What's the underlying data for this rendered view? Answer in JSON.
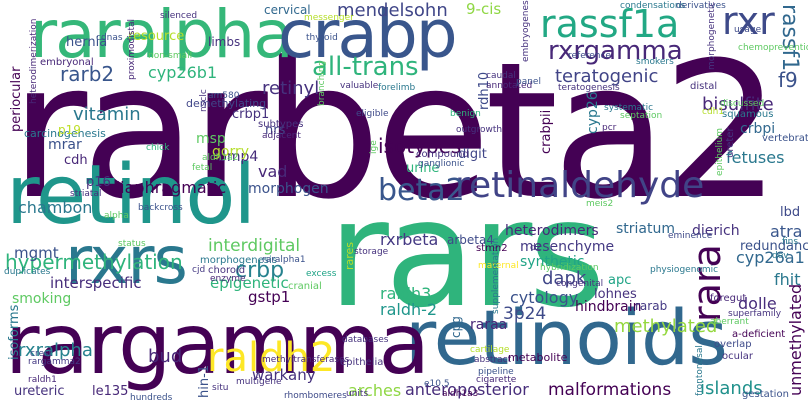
{
  "words": [
    {
      "text": "rarbeta2",
      "color": "#440154"
    },
    {
      "text": "rars",
      "color": "#2fb47c"
    },
    {
      "text": "retinoids",
      "color": "#31688e"
    },
    {
      "text": "rargamma",
      "color": "#440154"
    },
    {
      "text": "retinol",
      "color": "#1f968b"
    },
    {
      "text": "raralpha",
      "color": "#35b779"
    },
    {
      "text": "crabp",
      "color": "#39568c"
    },
    {
      "text": "rxrs",
      "color": "#2a788e"
    },
    {
      "text": "retinaldehyde",
      "color": "#414487"
    },
    {
      "text": "rassf1a",
      "color": "#22a884"
    },
    {
      "text": "rxrgamma",
      "color": "#482878"
    },
    {
      "text": "raldh2",
      "color": "#fde725"
    },
    {
      "text": "beta2",
      "color": "#39568c"
    },
    {
      "text": "rxr",
      "color": "#3e4a89"
    },
    {
      "text": "rassf1",
      "color": "#31688e"
    },
    {
      "text": "all-trans",
      "color": "#2fb47c"
    },
    {
      "text": "teratogenic",
      "color": "#414487"
    },
    {
      "text": "hypermethylation",
      "color": "#2fb47c"
    },
    {
      "text": "rara",
      "color": "#440154"
    },
    {
      "text": "rarb2",
      "color": "#39568c"
    },
    {
      "text": "cyp26b1",
      "color": "#2fb47c"
    },
    {
      "text": "mendelsohn",
      "color": "#404688"
    },
    {
      "text": "9-cis",
      "color": "#8fd744"
    },
    {
      "text": "retinyl",
      "color": "#46327e"
    },
    {
      "text": "vitamin",
      "color": "#2a788e"
    },
    {
      "text": "isotypes",
      "color": "#440154"
    },
    {
      "text": "bisulfite",
      "color": "#482878"
    },
    {
      "text": "f9",
      "color": "#3b528b"
    },
    {
      "text": "crbp",
      "color": "#26828e"
    },
    {
      "text": "interdigital",
      "color": "#5ec962"
    },
    {
      "text": "mesenchyme",
      "color": "#443983"
    },
    {
      "text": "cyp26a1",
      "color": "#31688e"
    },
    {
      "text": "mgmt",
      "color": "#3b528b"
    },
    {
      "text": "dapk",
      "color": "#404688"
    },
    {
      "text": "synthetic",
      "color": "#20a486"
    },
    {
      "text": "methylated",
      "color": "#95d840"
    },
    {
      "text": "rxrbeta",
      "color": "#443983"
    },
    {
      "text": "arbeta4",
      "color": "#3e4a89"
    },
    {
      "text": "heterodimers",
      "color": "#482878"
    },
    {
      "text": "striatum",
      "color": "#31688e"
    },
    {
      "text": "dierich",
      "color": "#46327e"
    },
    {
      "text": "atra",
      "color": "#39568c"
    },
    {
      "text": "cytology",
      "color": "#3b528b"
    },
    {
      "text": "raldh3",
      "color": "#2fb47c"
    },
    {
      "text": "raldh-2",
      "color": "#1f968b"
    },
    {
      "text": "chambon",
      "color": "#2a788e"
    },
    {
      "text": "p16",
      "color": "#46327e"
    },
    {
      "text": "diaphragmatic",
      "color": "#440154"
    },
    {
      "text": "vad",
      "color": "#482878"
    },
    {
      "text": "morphogen",
      "color": "#3b528b"
    },
    {
      "text": "gstp1",
      "color": "#440154"
    },
    {
      "text": "epigenetic",
      "color": "#2fb47c"
    },
    {
      "text": "interspecific",
      "color": "#472d7b"
    },
    {
      "text": "smoking",
      "color": "#5ec962"
    },
    {
      "text": "rxralpha",
      "color": "#26828e"
    },
    {
      "text": "bud",
      "color": "#482878"
    },
    {
      "text": "warkany",
      "color": "#46327e"
    },
    {
      "text": "arches",
      "color": "#8fd744"
    },
    {
      "text": "anteroposterior",
      "color": "#472d7b"
    },
    {
      "text": "malformations",
      "color": "#440154"
    },
    {
      "text": "islands",
      "color": "#21918c"
    },
    {
      "text": "unmethylated",
      "color": "#440154"
    },
    {
      "text": "3p24",
      "color": "#3e4a89"
    },
    {
      "text": "raraa",
      "color": "#482878"
    },
    {
      "text": "cpg",
      "color": "#31688e"
    },
    {
      "text": "hindbrain",
      "color": "#440154"
    },
    {
      "text": "rarab",
      "color": "#443983"
    },
    {
      "text": "apc",
      "color": "#20a486"
    },
    {
      "text": "lohnes",
      "color": "#46327e"
    },
    {
      "text": "dolle",
      "color": "#472d7b"
    },
    {
      "text": "fhit",
      "color": "#2a788e"
    },
    {
      "text": "redundancy",
      "color": "#3b528b"
    },
    {
      "text": "lbd",
      "color": "#3e4a89"
    },
    {
      "text": "fetuses",
      "color": "#2a788e"
    },
    {
      "text": "crbpi",
      "color": "#31688e"
    },
    {
      "text": "urine",
      "color": "#2fb47c"
    },
    {
      "text": "digit",
      "color": "#404688"
    },
    {
      "text": "bmp4",
      "color": "#472d7b"
    },
    {
      "text": "msp",
      "color": "#5ec962"
    },
    {
      "text": "crbp1",
      "color": "#46327e"
    },
    {
      "text": "mrar",
      "color": "#3b528b"
    },
    {
      "text": "cdh",
      "color": "#482878"
    },
    {
      "text": "carcinogenesis",
      "color": "#2a788e"
    },
    {
      "text": "hernia",
      "color": "#3b528b"
    },
    {
      "text": "resource",
      "color": "#b5de2b"
    },
    {
      "text": "limbs",
      "color": "#46327e"
    },
    {
      "text": "cervical",
      "color": "#31688e"
    },
    {
      "text": "embryonal",
      "color": "#482878"
    },
    {
      "text": "demethylating",
      "color": "#404688"
    },
    {
      "text": "periocular",
      "color": "#440154"
    },
    {
      "text": "nrs",
      "color": "#414487"
    },
    {
      "text": "gorry",
      "color": "#b5de2b"
    },
    {
      "text": "p19",
      "color": "#bddf26"
    },
    {
      "text": "ureteric",
      "color": "#46327e"
    },
    {
      "text": "le135",
      "color": "#482878"
    },
    {
      "text": "isoforms",
      "color": "#2a788e"
    },
    {
      "text": "crest",
      "color": "#3e4a89"
    },
    {
      "text": "rargamma2",
      "color": "#443983"
    },
    {
      "text": "raldh1",
      "color": "#482878"
    },
    {
      "text": "hin-1",
      "color": "#3b528b"
    },
    {
      "text": "epithelia",
      "color": "#46327e"
    },
    {
      "text": "methyltransferases",
      "color": "#482878"
    },
    {
      "text": "multigene",
      "color": "#46327e"
    },
    {
      "text": "rhombomeres",
      "color": "#3e4a89"
    },
    {
      "text": "morphogenesis",
      "color": "#2a788e"
    },
    {
      "text": "choroid",
      "color": "#46327e"
    },
    {
      "text": "enzyme",
      "color": "#482878"
    },
    {
      "text": "cjd",
      "color": "#443983"
    },
    {
      "text": "raralpha1",
      "color": "#3b528b"
    },
    {
      "text": "cranial",
      "color": "#5ec962"
    },
    {
      "text": "excess",
      "color": "#20a486"
    },
    {
      "text": "databases",
      "color": "#46327e"
    },
    {
      "text": "maternal",
      "color": "#fde725"
    },
    {
      "text": "supplementation",
      "color": "#2a788e"
    },
    {
      "text": "cartilage",
      "color": "#b5de2b"
    },
    {
      "text": "abstract",
      "color": "#46327e"
    },
    {
      "text": "metabolite",
      "color": "#440154"
    },
    {
      "text": "pipeline",
      "color": "#3b528b"
    },
    {
      "text": "cigarette",
      "color": "#482878"
    },
    {
      "text": "hybridization",
      "color": "#5ec962"
    },
    {
      "text": "congenital",
      "color": "#46327e"
    },
    {
      "text": "physiogenomic",
      "color": "#2a788e"
    },
    {
      "text": "aberrant",
      "color": "#5ec962"
    },
    {
      "text": "a-deficient",
      "color": "#440154"
    },
    {
      "text": "overlap",
      "color": "#3e4a89"
    },
    {
      "text": "ocular",
      "color": "#46327e"
    },
    {
      "text": "gestation",
      "color": "#3b528b"
    },
    {
      "text": "frontonasal",
      "color": "#2a788e"
    },
    {
      "text": "superfamily",
      "color": "#46327e"
    },
    {
      "text": "foregut",
      "color": "#482878"
    },
    {
      "text": "dev",
      "color": "#2a788e"
    },
    {
      "text": "eminence",
      "color": "#3e4a89"
    },
    {
      "text": "fins",
      "color": "#2a788e"
    },
    {
      "text": "storage",
      "color": "#46327e"
    },
    {
      "text": "rares",
      "color": "#b5de2b"
    },
    {
      "text": "stmn2",
      "color": "#440154"
    },
    {
      "text": "d2",
      "color": "#46327e"
    },
    {
      "text": "e10.5",
      "color": "#3b528b"
    },
    {
      "text": "units",
      "color": "#46327e"
    },
    {
      "text": "aldh1a3",
      "color": "#440154"
    },
    {
      "text": "hundreds",
      "color": "#3b528b"
    },
    {
      "text": "situ",
      "color": "#46327e"
    },
    {
      "text": "status",
      "color": "#5ec962"
    },
    {
      "text": "duplicates",
      "color": "#2a788e"
    },
    {
      "text": "backcross",
      "color": "#3b528b"
    },
    {
      "text": "alpha",
      "color": "#5ec962"
    },
    {
      "text": "striatal",
      "color": "#46327e"
    },
    {
      "text": "fetal",
      "color": "#5ec962"
    },
    {
      "text": "chick",
      "color": "#2fb47c"
    },
    {
      "text": "aldh1a2",
      "color": "#5ec962"
    },
    {
      "text": "subtypes",
      "color": "#46327e"
    },
    {
      "text": "adjacent",
      "color": "#482878"
    },
    {
      "text": "eligible",
      "color": "#3e4a89"
    },
    {
      "text": "ige",
      "color": "#5ec962"
    },
    {
      "text": "compound",
      "color": "#46327e"
    },
    {
      "text": "ganglionic",
      "color": "#3b528b"
    },
    {
      "text": "meis2",
      "color": "#5ec962"
    },
    {
      "text": "outgrowth",
      "color": "#46327e"
    },
    {
      "text": "benign",
      "color": "#2fb47c"
    },
    {
      "text": "systematic",
      "color": "#2a788e"
    },
    {
      "text": "septation",
      "color": "#5ec962"
    },
    {
      "text": "pcr",
      "color": "#482878"
    },
    {
      "text": "distal",
      "color": "#46327e"
    },
    {
      "text": "squamous",
      "color": "#2a788e"
    },
    {
      "text": "vertebrate",
      "color": "#3b528b"
    },
    {
      "text": "ureter",
      "color": "#46327e"
    },
    {
      "text": "epithelium",
      "color": "#5ec962"
    },
    {
      "text": "cdh1",
      "color": "#b5de2b"
    },
    {
      "text": "discussed",
      "color": "#5ec962"
    },
    {
      "text": "rdh10",
      "color": "#3e4a89"
    },
    {
      "text": "crabpii",
      "color": "#440154"
    },
    {
      "text": "cyp26",
      "color": "#2a788e"
    },
    {
      "text": "caudal",
      "color": "#46327e"
    },
    {
      "text": "annotated",
      "color": "#482878"
    },
    {
      "text": "panel",
      "color": "#3b528b"
    },
    {
      "text": "teratogenesis",
      "color": "#46327e"
    },
    {
      "text": "smokers",
      "color": "#2a788e"
    },
    {
      "text": "reference",
      "color": "#3e4a89"
    },
    {
      "text": "embryogenesis",
      "color": "#46327e"
    },
    {
      "text": "condensations",
      "color": "#2a788e"
    },
    {
      "text": "derivatives",
      "color": "#3b528b"
    },
    {
      "text": "usage",
      "color": "#3e4a89"
    },
    {
      "text": "morphogenetic",
      "color": "#46327e"
    },
    {
      "text": "chemoprevention",
      "color": "#5ec962"
    },
    {
      "text": "valuable",
      "color": "#46327e"
    },
    {
      "text": "forelimb",
      "color": "#2a788e"
    },
    {
      "text": "am580",
      "color": "#3b528b"
    },
    {
      "text": "nsclc",
      "color": "#46327e"
    },
    {
      "text": "branching",
      "color": "#5ec962"
    },
    {
      "text": "proximodistal",
      "color": "#482878"
    },
    {
      "text": "thyroid",
      "color": "#3b528b"
    },
    {
      "text": "messenger",
      "color": "#b5de2b"
    },
    {
      "text": "silenced",
      "color": "#46327e"
    },
    {
      "text": "cdnas",
      "color": "#3b528b"
    },
    {
      "text": "non-small",
      "color": "#5ec962"
    },
    {
      "text": "heterodimerization",
      "color": "#482878"
    }
  ]
}
